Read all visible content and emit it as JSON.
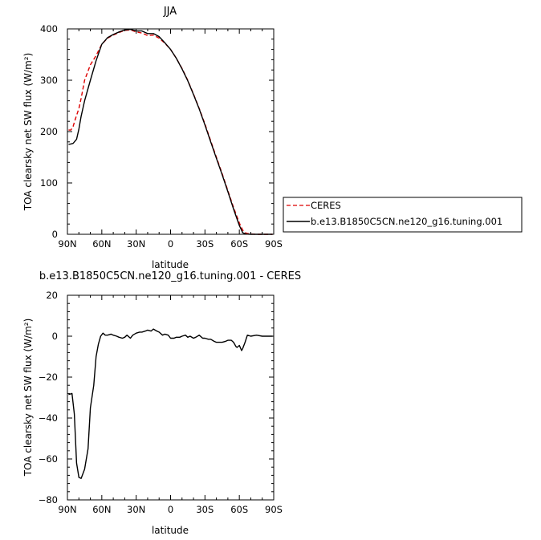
{
  "chart_data": [
    {
      "type": "line",
      "title": "JJA",
      "xlabel": "latitude",
      "ylabel": "TOA clearsky net SW flux (W/m²)",
      "xlim": [
        90,
        -90
      ],
      "ylim": [
        0,
        400
      ],
      "x_ticks": [
        90,
        60,
        30,
        0,
        -30,
        -60,
        -90
      ],
      "x_tick_labels": [
        "90N",
        "60N",
        "30N",
        "0",
        "30S",
        "60S",
        "90S"
      ],
      "y_ticks": [
        0,
        100,
        200,
        300,
        400
      ],
      "y_tick_labels": [
        "0",
        "100",
        "200",
        "300",
        "400"
      ],
      "legend": "right",
      "series": [
        {
          "name": "CERES",
          "color": "#dd0000",
          "dash": "dashed",
          "x": [
            89,
            87,
            85,
            83,
            80,
            78,
            75,
            70,
            65,
            60,
            55,
            50,
            45,
            40,
            35,
            30,
            25,
            20,
            15,
            10,
            5,
            0,
            -5,
            -10,
            -15,
            -20,
            -25,
            -30,
            -35,
            -40,
            -45,
            -50,
            -55,
            -60,
            -63,
            -66,
            -70,
            -75,
            -80,
            -85,
            -89
          ],
          "y": [
            203,
            203,
            210,
            225,
            245,
            265,
            300,
            330,
            348,
            370,
            382,
            388,
            393,
            397,
            398,
            394,
            392,
            387,
            388,
            382,
            372,
            360,
            343,
            323,
            300,
            273,
            245,
            215,
            182,
            150,
            118,
            85,
            52,
            22,
            8,
            2,
            0.5,
            0,
            0,
            0,
            0
          ]
        },
        {
          "name": "b.e13.B1850C5CN.ne120_g16.tuning.001",
          "color": "#000000",
          "dash": "solid",
          "x": [
            89,
            87,
            85,
            82,
            80,
            78,
            75,
            70,
            65,
            60,
            55,
            50,
            45,
            40,
            35,
            30,
            25,
            20,
            15,
            10,
            5,
            0,
            -5,
            -10,
            -15,
            -20,
            -25,
            -30,
            -35,
            -40,
            -45,
            -50,
            -55,
            -60,
            -63,
            -66,
            -70,
            -75,
            -80,
            -85,
            -89
          ],
          "y": [
            175,
            176,
            177,
            185,
            205,
            230,
            260,
            300,
            338,
            370,
            383,
            389,
            394,
            398,
            399,
            396,
            396,
            391,
            391,
            385,
            373,
            360,
            343,
            322,
            299,
            272,
            244,
            213,
            180,
            148,
            116,
            83,
            49,
            17,
            3,
            0.5,
            0,
            0,
            0,
            0,
            0
          ]
        }
      ]
    },
    {
      "type": "line",
      "title": "b.e13.B1850C5CN.ne120_g16.tuning.001 - CERES",
      "xlabel": "latitude",
      "ylabel": "TOA clearsky net SW flux (W/m²)",
      "xlim": [
        90,
        -90
      ],
      "ylim": [
        -80,
        20
      ],
      "x_ticks": [
        90,
        60,
        30,
        0,
        -30,
        -60,
        -90
      ],
      "x_tick_labels": [
        "90N",
        "60N",
        "30N",
        "0",
        "30S",
        "60S",
        "90S"
      ],
      "y_ticks": [
        -80,
        -60,
        -40,
        -20,
        0,
        20
      ],
      "y_tick_labels": [
        "−80",
        "−60",
        "−40",
        "−20",
        "0",
        "20"
      ],
      "series": [
        {
          "color": "#000000",
          "dash": "solid",
          "x": [
            89,
            86,
            84,
            82,
            80,
            78,
            75,
            72,
            70,
            67,
            65,
            63,
            61,
            59,
            57,
            55,
            52,
            50,
            47,
            45,
            42,
            40,
            38,
            35,
            33,
            30,
            27,
            25,
            22,
            20,
            17,
            15,
            12,
            10,
            7,
            5,
            2,
            0,
            -3,
            -5,
            -8,
            -10,
            -13,
            -15,
            -17,
            -20,
            -22,
            -25,
            -28,
            -30,
            -33,
            -35,
            -38,
            -40,
            -43,
            -45,
            -48,
            -50,
            -53,
            -55,
            -57,
            -58,
            -60,
            -62,
            -63,
            -65,
            -67,
            -70,
            -75,
            -80,
            -85,
            -89
          ],
          "y": [
            -28.5,
            -28,
            -38,
            -62,
            -69,
            -69.5,
            -65,
            -55,
            -35,
            -24,
            -10,
            -4,
            0,
            1.5,
            0.5,
            0.5,
            1,
            0.5,
            0,
            -0.5,
            -1,
            -0.5,
            0.5,
            -1,
            0.5,
            1.5,
            2,
            2,
            2.5,
            3,
            2.5,
            3.5,
            2.5,
            2,
            0.5,
            1,
            0.5,
            -1,
            -1,
            -0.5,
            -0.5,
            0,
            0.5,
            -0.5,
            0,
            -1,
            -0.5,
            0.5,
            -1,
            -1,
            -1.5,
            -1.5,
            -2.5,
            -3,
            -3,
            -3,
            -2.5,
            -2,
            -2,
            -3,
            -5,
            -5.5,
            -4.5,
            -7,
            -6,
            -3,
            0.5,
            0,
            0.5,
            0,
            0,
            0
          ]
        }
      ]
    }
  ]
}
